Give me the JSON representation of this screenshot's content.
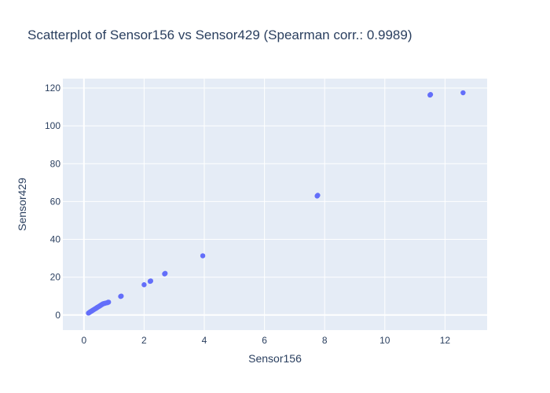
{
  "chart_data": {
    "type": "scatter",
    "title": "Scatterplot of Sensor156 vs Sensor429 (Spearman corr.: 0.9989)",
    "xlabel": "Sensor156",
    "ylabel": "Sensor429",
    "xlim": [
      -0.7,
      13.4
    ],
    "ylim": [
      -8,
      125
    ],
    "xticks": [
      0,
      2,
      4,
      6,
      8,
      10,
      12
    ],
    "yticks": [
      0,
      20,
      40,
      60,
      80,
      100,
      120
    ],
    "grid": true,
    "legend": "none",
    "marker_color": "#636efa",
    "plot_background": "#e5ecf6",
    "series": [
      {
        "x": [
          0.15,
          0.18,
          0.2,
          0.22,
          0.25,
          0.27,
          0.3,
          0.32,
          0.35,
          0.37,
          0.4,
          0.42,
          0.45,
          0.47,
          0.5,
          0.52,
          0.55,
          0.57,
          0.6,
          0.62,
          0.65,
          0.68,
          0.72,
          0.78,
          0.8,
          0.82,
          1.22,
          1.24,
          2.0,
          2.2,
          2.22,
          2.68,
          2.7,
          3.95,
          7.75,
          7.77,
          11.5,
          11.52,
          12.6
        ],
        "y": [
          1.0,
          1.3,
          1.5,
          1.8,
          2.0,
          2.3,
          2.5,
          2.8,
          3.0,
          3.3,
          3.5,
          3.8,
          4.0,
          4.3,
          4.5,
          4.8,
          5.0,
          5.3,
          5.5,
          5.8,
          6.0,
          6.1,
          6.3,
          6.5,
          6.7,
          6.8,
          9.8,
          10.0,
          16.0,
          17.8,
          18.0,
          21.7,
          22.0,
          31.3,
          62.9,
          63.3,
          116.3,
          116.6,
          117.5
        ]
      }
    ]
  }
}
